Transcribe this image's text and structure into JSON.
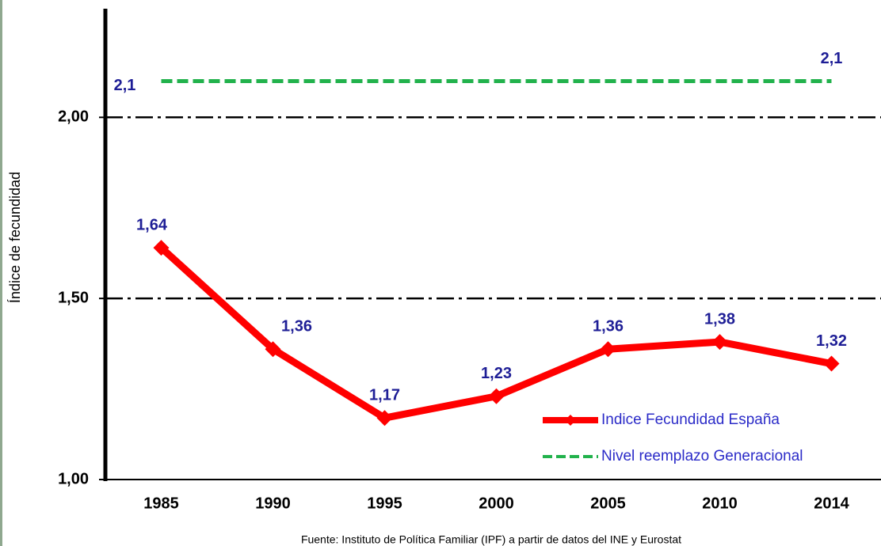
{
  "chart_data": {
    "type": "line",
    "y_label": "Índice de fecundidad",
    "source": "Fuente: Instituto de Política Familiar (IPF) a partir de datos del INE y Eurostat",
    "categories": [
      "1985",
      "1990",
      "1995",
      "2000",
      "2005",
      "2010",
      "2014"
    ],
    "series": [
      {
        "name": "Indice Fecundidad España",
        "color": "#ff0000",
        "values": [
          1.64,
          1.36,
          1.17,
          1.23,
          1.36,
          1.38,
          1.32
        ],
        "value_labels": [
          "1,64",
          "1,36",
          "1,17",
          "1,23",
          "1,36",
          "1,38",
          "1,32"
        ]
      },
      {
        "name": "Nivel reemplazo Generacional",
        "color": "#22b24c",
        "dashed": true,
        "values": [
          2.1,
          2.1,
          2.1,
          2.1,
          2.1,
          2.1,
          2.1
        ],
        "value_labels": [
          "2,1",
          null,
          null,
          null,
          null,
          null,
          "2,1"
        ]
      }
    ],
    "ylim": [
      1,
      2.3
    ],
    "yticks": [
      {
        "value": 1,
        "label": "1,00"
      },
      {
        "value": 1.5,
        "label": "1,50"
      },
      {
        "value": 2,
        "label": "2,00"
      }
    ],
    "grid": true,
    "legend": "lower right"
  }
}
